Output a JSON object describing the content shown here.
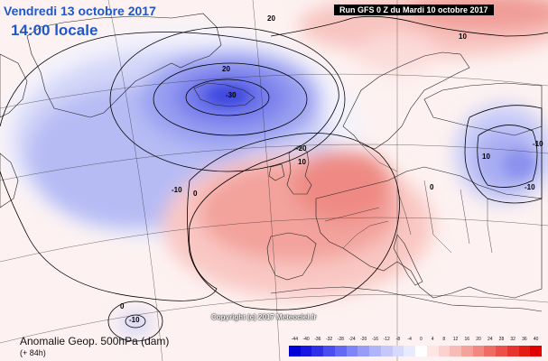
{
  "header": {
    "date": "Vendredi 13 octobre 2017",
    "time": "14:00 locale",
    "run": "Run GFS 0 Z du Mardi 10 octobre 2017"
  },
  "footer": {
    "title": "Anomalie Geop. 500hPa (dam)",
    "lead": "(+ 84h)",
    "copyright": "Copyright (c) 2017 Meteociel.fr"
  },
  "contour_labels": [
    "20",
    "10",
    "20",
    "-30",
    "-20",
    "-10",
    "0",
    "10",
    "0",
    "-10",
    "10",
    "-10",
    "0",
    "-10"
  ],
  "legend": {
    "ticks": [
      "-44",
      "-40",
      "-36",
      "-32",
      "-28",
      "-24",
      "-20",
      "-16",
      "-12",
      "-8",
      "-4",
      "0",
      "4",
      "8",
      "12",
      "16",
      "20",
      "24",
      "28",
      "32",
      "36",
      "40"
    ],
    "colors": [
      "#0000d6",
      "#1616e0",
      "#2e30e6",
      "#4a4ef0",
      "#6468f4",
      "#7f84f6",
      "#989cf8",
      "#b0b4fa",
      "#c4c8fb",
      "#d8dafc",
      "#e8eafe",
      "#ffffff",
      "#fde6e4",
      "#fbd2cf",
      "#f8bbb6",
      "#f5a29b",
      "#f28880",
      "#ef6c64",
      "#ec5048",
      "#e8342c",
      "#e41c14",
      "#e00000"
    ]
  },
  "colors": {
    "header_text": "#1e58c8",
    "negative_anomaly": "#5a64e6",
    "positive_anomaly": "#ef7a72"
  }
}
